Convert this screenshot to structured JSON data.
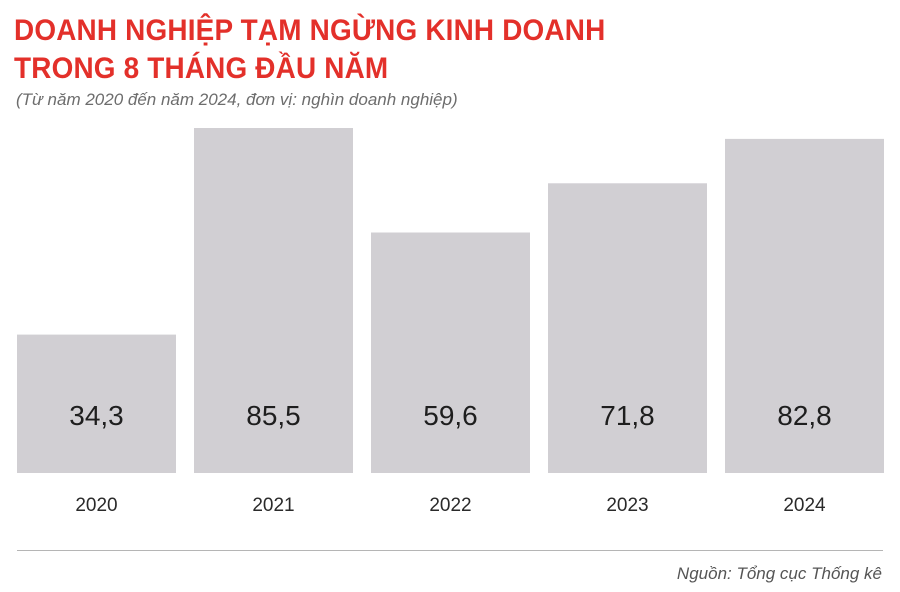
{
  "title_line1": "DOANH NGHIỆP TẠM NGỪNG KINH DOANH",
  "title_line2": "TRONG 8 THÁNG ĐẦU NĂM",
  "subtitle": "(Từ năm 2020 đến năm 2024, đơn vị: nghìn doanh nghiệp)",
  "source": "Nguồn: Tổng cục Thống kê",
  "colors": {
    "title": "#e3302a",
    "bar": "#d1cfd3"
  },
  "chart_data": {
    "type": "bar",
    "categories": [
      "2020",
      "2021",
      "2022",
      "2023",
      "2024"
    ],
    "values": [
      34.3,
      85.5,
      59.6,
      71.8,
      82.8
    ],
    "value_labels": [
      "34,3",
      "85,5",
      "59,6",
      "71,8",
      "82,8"
    ],
    "ylim": [
      0,
      85.5
    ],
    "grid": false,
    "legend": "none"
  }
}
